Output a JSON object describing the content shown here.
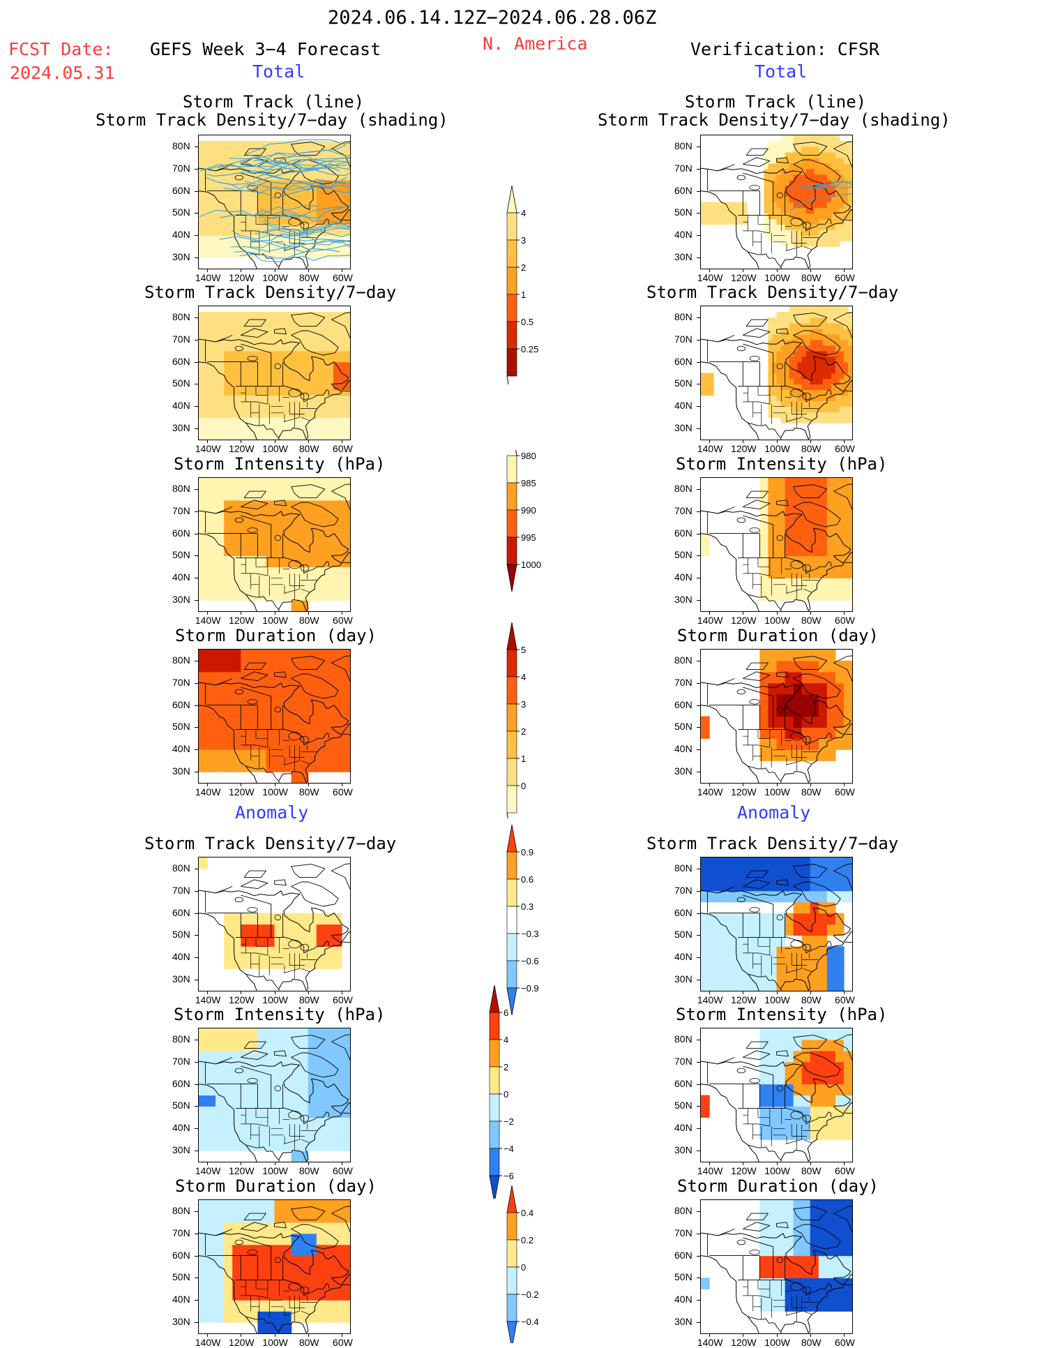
{
  "header": {
    "period": "2024.06.14.12Z−2024.06.28.06Z",
    "region": "N. America",
    "fcst_date_label": "FCST Date:",
    "fcst_date": "2024.05.31",
    "left_title": "GEFS Week 3−4 Forecast",
    "right_title": "Verification: CFSR",
    "total_left": "Total",
    "total_right": "Total",
    "anomaly_left": "Anomaly",
    "anomaly_right": "Anomaly"
  },
  "colors": {
    "text_red": "#ff3a3a",
    "text_blue": "#2b3dff",
    "dens_0": "#fff8c0",
    "dens_1": "#ffe080",
    "dens_2": "#ffc040",
    "dens_3": "#ffa020",
    "dens_4": "#ff6010",
    "dens_5": "#dd2a00",
    "dens_6": "#aa1000",
    "int_0": "#fff4b0",
    "int_1": "#ffa020",
    "int_2": "#ff6010",
    "int_3": "#cc1800",
    "int_4": "#990000",
    "anom_pos_1": "#ffe98a",
    "anom_pos_2": "#ffa020",
    "anom_pos_3": "#ff4010",
    "anom_pos_4": "#b71000",
    "anom_neg_1": "#c5f0ff",
    "anom_neg_2": "#80c8ff",
    "anom_neg_3": "#3080f0",
    "anom_neg_4": "#1050d0",
    "track_line": "#3aa0e0"
  },
  "map_axes": {
    "lat_labels": [
      "80N",
      "70N",
      "60N",
      "50N",
      "40N",
      "30N"
    ],
    "lon_labels": [
      "140W",
      "120W",
      "100W",
      "80W",
      "60W"
    ]
  },
  "panels": {
    "left": [
      {
        "id": "track",
        "title1": "Storm Track (line)",
        "title2": "Storm Track Density/7−day (shading)"
      },
      {
        "id": "density",
        "title1": "Storm Track Density/7−day"
      },
      {
        "id": "intensity",
        "title1": "Storm Intensity (hPa)"
      },
      {
        "id": "duration",
        "title1": "Storm Duration (day)"
      },
      {
        "id": "density_anom",
        "title1": "Storm Track Density/7−day"
      },
      {
        "id": "intensity_anom",
        "title1": "Storm Intensity (hPa)"
      },
      {
        "id": "duration_anom",
        "title1": "Storm Duration (day)"
      }
    ],
    "right": [
      {
        "id": "track",
        "title1": "Storm Track (line)",
        "title2": "Storm Track Density/7−day (shading)"
      },
      {
        "id": "density",
        "title1": "Storm Track Density/7−day"
      },
      {
        "id": "intensity",
        "title1": "Storm Intensity (hPa)"
      },
      {
        "id": "duration",
        "title1": "Storm Duration (day)"
      },
      {
        "id": "density_anom",
        "title1": "Storm Track Density/7−day"
      },
      {
        "id": "intensity_anom",
        "title1": "Storm Intensity (hPa)"
      },
      {
        "id": "duration_anom",
        "title1": "Storm Duration (day)"
      }
    ]
  },
  "colorbars": {
    "density": [
      "0.25",
      "0.5",
      "1",
      "2",
      "3",
      "4"
    ],
    "intensity": [
      "980",
      "985",
      "990",
      "995",
      "1000"
    ],
    "duration": [
      "0",
      "1",
      "2",
      "3",
      "4",
      "5"
    ],
    "density_anom": [
      "−0.9",
      "−0.6",
      "−0.3",
      "0.3",
      "0.6",
      "0.9"
    ],
    "intensity_anom": [
      "−6",
      "−4",
      "−2",
      "0",
      "2",
      "4",
      "6"
    ],
    "duration_anom": [
      "−0.4",
      "−0.2",
      "0",
      "0.2",
      "0.4"
    ]
  }
}
